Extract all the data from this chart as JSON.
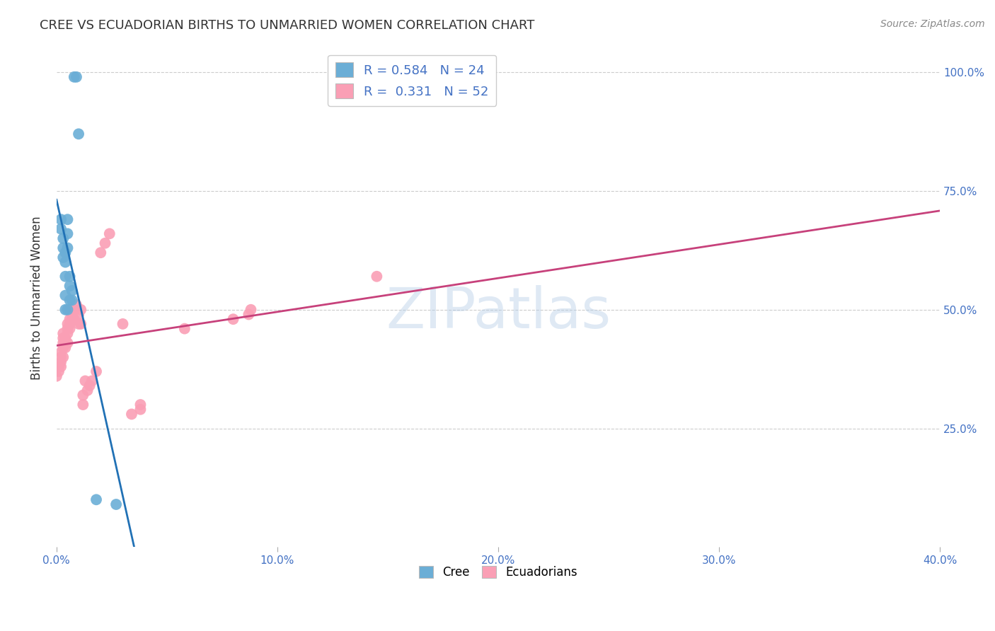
{
  "title": "CREE VS ECUADORIAN BIRTHS TO UNMARRIED WOMEN CORRELATION CHART",
  "source": "Source: ZipAtlas.com",
  "ylabel": "Births to Unmarried Women",
  "xlabel_ticks": [
    "0.0%",
    "10.0%",
    "20.0%",
    "30.0%",
    "40.0%"
  ],
  "ylabel_ticks": [
    "25.0%",
    "50.0%",
    "75.0%",
    "100.0%"
  ],
  "xlim": [
    0.0,
    0.4
  ],
  "ylim": [
    0.0,
    1.05
  ],
  "watermark": "ZIPatlas",
  "cree_color": "#6baed6",
  "ecu_color": "#fa9fb5",
  "cree_line_color": "#2171b5",
  "ecu_line_color": "#c7417b",
  "cree_R": "0.584",
  "cree_N": "24",
  "ecu_R": "0.331",
  "ecu_N": "52",
  "cree_points_x": [
    0.002,
    0.002,
    0.003,
    0.003,
    0.003,
    0.004,
    0.004,
    0.004,
    0.004,
    0.004,
    0.005,
    0.005,
    0.005,
    0.005,
    0.006,
    0.006,
    0.006,
    0.007,
    0.007,
    0.008,
    0.009,
    0.01,
    0.018,
    0.027
  ],
  "cree_points_y": [
    0.69,
    0.67,
    0.65,
    0.63,
    0.61,
    0.62,
    0.6,
    0.57,
    0.53,
    0.5,
    0.69,
    0.66,
    0.63,
    0.5,
    0.57,
    0.55,
    0.52,
    0.54,
    0.52,
    0.99,
    0.99,
    0.87,
    0.1,
    0.09
  ],
  "ecu_points_x": [
    0.0,
    0.001,
    0.001,
    0.001,
    0.002,
    0.002,
    0.002,
    0.002,
    0.003,
    0.003,
    0.003,
    0.003,
    0.003,
    0.004,
    0.004,
    0.004,
    0.005,
    0.005,
    0.005,
    0.005,
    0.006,
    0.006,
    0.006,
    0.006,
    0.007,
    0.007,
    0.008,
    0.008,
    0.009,
    0.01,
    0.01,
    0.011,
    0.011,
    0.012,
    0.012,
    0.013,
    0.014,
    0.015,
    0.016,
    0.018,
    0.02,
    0.022,
    0.024,
    0.03,
    0.034,
    0.038,
    0.038,
    0.058,
    0.08,
    0.087,
    0.088,
    0.145
  ],
  "ecu_points_y": [
    0.36,
    0.38,
    0.38,
    0.37,
    0.38,
    0.39,
    0.4,
    0.41,
    0.4,
    0.42,
    0.43,
    0.44,
    0.45,
    0.43,
    0.42,
    0.44,
    0.43,
    0.45,
    0.46,
    0.47,
    0.46,
    0.47,
    0.48,
    0.5,
    0.48,
    0.49,
    0.48,
    0.5,
    0.51,
    0.47,
    0.49,
    0.47,
    0.5,
    0.3,
    0.32,
    0.35,
    0.33,
    0.34,
    0.35,
    0.37,
    0.62,
    0.64,
    0.66,
    0.47,
    0.28,
    0.29,
    0.3,
    0.46,
    0.48,
    0.49,
    0.5,
    0.57
  ],
  "background_color": "#ffffff",
  "grid_color": "#cccccc",
  "title_color": "#333333",
  "tick_label_color": "#4472c4"
}
